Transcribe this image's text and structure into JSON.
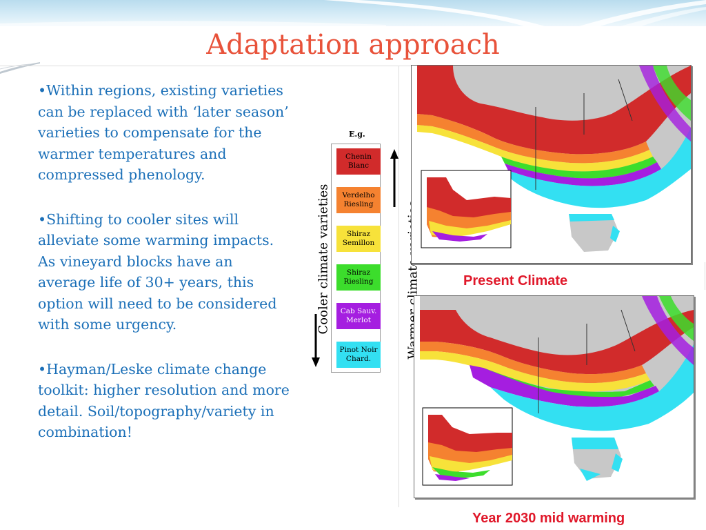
{
  "slide": {
    "title": "Adaptation approach",
    "bullets": [
      "Within regions, existing varieties can be replaced with ‘later season’ varieties to compensate for the warmer temperatures and compressed phenology.",
      "Shifting to cooler sites will alleviate some warming impacts. As vineyard blocks have an average life of 30+ years, this option will need to be considered with some urgency.",
      "Hayman/Leske climate change toolkit: higher resolution and more detail. Soil/topography/variety in combination!"
    ]
  },
  "legend": {
    "eg_label": "E.g.",
    "cooler_label": "Cooler climate varieties",
    "warmer_label": "Warmer climate varieties",
    "items": [
      {
        "line1": "Chenin",
        "line2": "Blanc",
        "color": "#d12b2b"
      },
      {
        "line1": "Verdelho",
        "line2": "Riesling",
        "color": "#f58230"
      },
      {
        "line1": "Shiraz",
        "line2": "Semillon",
        "color": "#f7e23a"
      },
      {
        "line1": "Shiraz",
        "line2": "Riesling",
        "color": "#3cdd2c"
      },
      {
        "line1": "Cab Sauv.",
        "line2": "Merlot",
        "color": "#a51ee0"
      },
      {
        "line1": "Pinot Noir",
        "line2": "Chard.",
        "color": "#33e0f2"
      }
    ]
  },
  "maps": {
    "present_label": "Present Climate",
    "future_label": "Year 2030 mid warming"
  },
  "colors": {
    "title": "#e8523a",
    "bullet_text": "#1c70b8",
    "map_label": "#e0182a",
    "land_gray": "#c8c8c8"
  }
}
